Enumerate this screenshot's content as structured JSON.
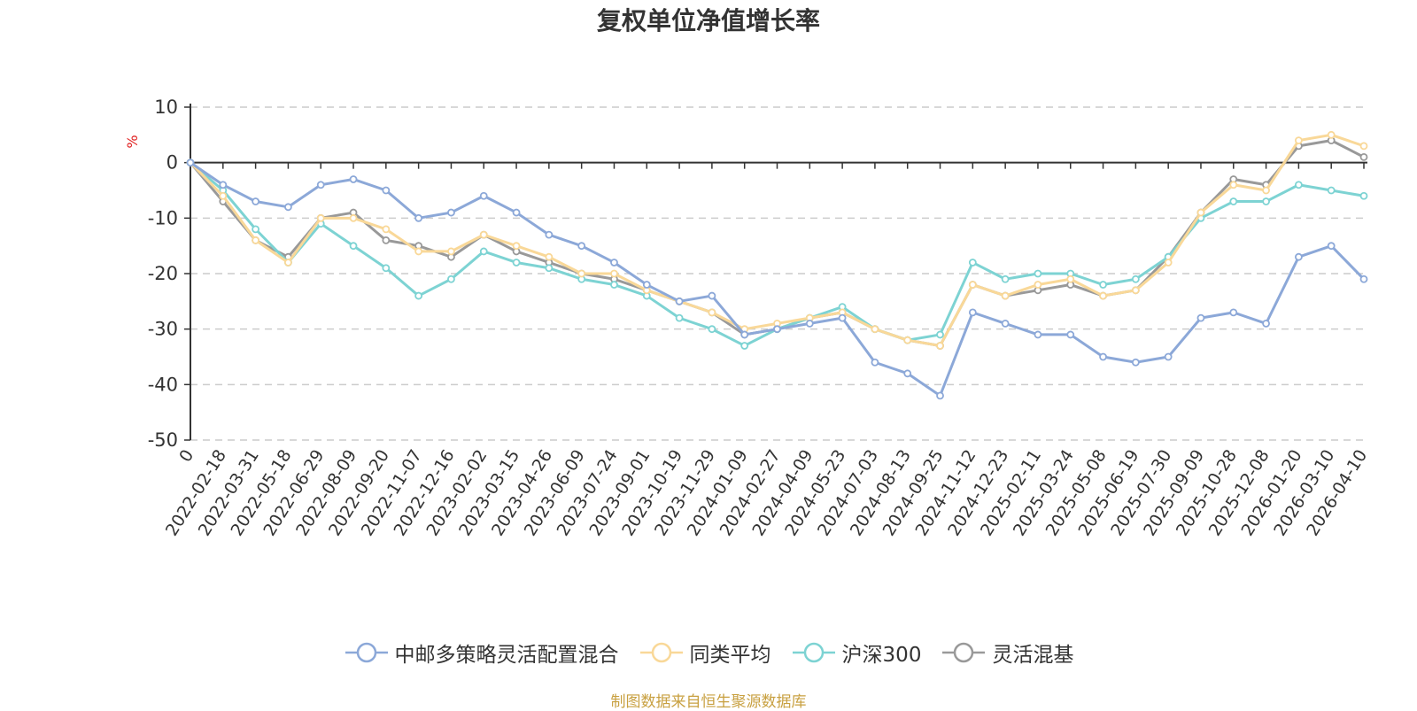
{
  "chart_data": {
    "type": "line",
    "title": "复权单位净值增长率",
    "ylabel": "%",
    "xlabel": "",
    "ylim": [
      -50,
      10
    ],
    "yticks": [
      10,
      0,
      -10,
      -20,
      -30,
      -40,
      -50
    ],
    "x": [
      "0",
      "2022-02-18",
      "2022-03-31",
      "2022-05-18",
      "2022-06-29",
      "2022-08-09",
      "2022-09-20",
      "2022-11-07",
      "2022-12-16",
      "2023-02-02",
      "2023-03-15",
      "2023-04-26",
      "2023-06-09",
      "2023-07-24",
      "2023-09-01",
      "2023-10-19",
      "2023-11-29",
      "2024-01-09",
      "2024-02-27",
      "2024-04-09",
      "2024-05-23",
      "2024-07-03",
      "2024-08-13",
      "2024-09-25",
      "2024-11-12",
      "2024-12-23",
      "2025-02-11",
      "2025-03-24",
      "2025-05-08",
      "2025-06-19",
      "2025-07-30",
      "2025-09-09",
      "2025-10-28",
      "2025-12-08",
      "2026-01-20",
      "2026-03-10",
      "2026-04-10"
    ],
    "series": [
      {
        "name": "中邮多策略灵活配置混合",
        "color": "#8CA8D8",
        "values": [
          0,
          -4,
          -7,
          -8,
          -4,
          -3,
          -5,
          -10,
          -9,
          -6,
          -9,
          -13,
          -15,
          -18,
          -22,
          -25,
          -24,
          -31,
          -30,
          -29,
          -28,
          -36,
          -38,
          -42,
          -27,
          -29,
          -31,
          -31,
          -35,
          -36,
          -35,
          -28,
          -27,
          -29,
          -17,
          -15,
          -21
        ]
      },
      {
        "name": "同类平均",
        "color": "#F9D898",
        "values": [
          0,
          -6,
          -14,
          -18,
          -10,
          -10,
          -12,
          -16,
          -16,
          -13,
          -15,
          -17,
          -20,
          -20,
          -23,
          -25,
          -27,
          -30,
          -29,
          -28,
          -27,
          -30,
          -32,
          -33,
          -22,
          -24,
          -22,
          -21,
          -24,
          -23,
          -18,
          -9,
          -4,
          -5,
          4,
          5,
          3
        ]
      },
      {
        "name": "沪深300",
        "color": "#7DD3D3",
        "values": [
          0,
          -5,
          -12,
          -18,
          -11,
          -15,
          -19,
          -24,
          -21,
          -16,
          -18,
          -19,
          -21,
          -22,
          -24,
          -28,
          -30,
          -33,
          -30,
          -28,
          -26,
          -30,
          -32,
          -31,
          -18,
          -21,
          -20,
          -20,
          -22,
          -21,
          -17,
          -10,
          -7,
          -7,
          -4,
          -5,
          -6
        ]
      },
      {
        "name": "灵活混基",
        "color": "#999999",
        "values": [
          0,
          -7,
          -14,
          -17,
          -10,
          -9,
          -14,
          -15,
          -17,
          -13,
          -16,
          -18,
          -20,
          -21,
          -23,
          -25,
          -27,
          -31,
          -30,
          -28,
          -27,
          -30,
          -32,
          -33,
          -22,
          -24,
          -23,
          -22,
          -24,
          -23,
          -17,
          -9,
          -3,
          -4,
          3,
          4,
          1
        ]
      }
    ],
    "legend_position": "bottom-center",
    "grid": true
  },
  "footer": {
    "text": "制图数据来自恒生聚源数据库",
    "color": "#C8A040"
  }
}
